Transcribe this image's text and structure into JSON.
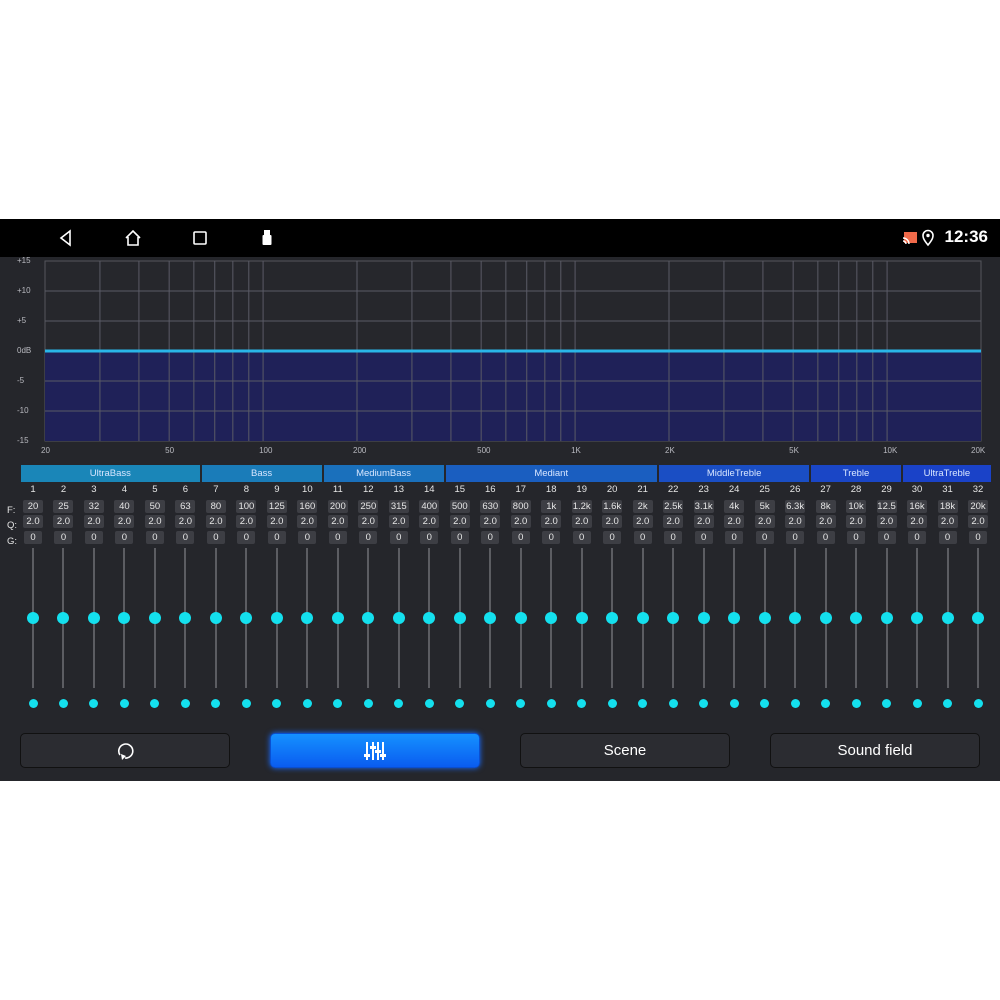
{
  "status": {
    "time": "12:36",
    "nav_icons": [
      "back-icon",
      "home-icon",
      "recents-icon",
      "usb-icon"
    ],
    "status_icons": [
      "cast-icon",
      "location-icon"
    ]
  },
  "chart_data": {
    "type": "area",
    "x_scale": "log",
    "xlim": [
      20,
      20000
    ],
    "ylim": [
      -15,
      15
    ],
    "grid": true,
    "y_ticks": [
      "+15",
      "+10",
      "+5",
      "0dB",
      "-5",
      "-10",
      "-15"
    ],
    "x_ticks": [
      {
        "v": 20,
        "label": "20"
      },
      {
        "v": 50,
        "label": "50"
      },
      {
        "v": 100,
        "label": "100"
      },
      {
        "v": 200,
        "label": "200"
      },
      {
        "v": 500,
        "label": "500"
      },
      {
        "v": 1000,
        "label": "1K"
      },
      {
        "v": 2000,
        "label": "2K"
      },
      {
        "v": 5000,
        "label": "5K"
      },
      {
        "v": 10000,
        "label": "10K"
      },
      {
        "v": 20000,
        "label": "20K"
      }
    ],
    "series": [
      {
        "x": [
          20,
          20000
        ],
        "y": [
          0,
          0
        ]
      }
    ],
    "line_color": "#29b6e8",
    "fill_color": "#1f2158"
  },
  "bands": [
    {
      "name": "UltraBass",
      "from": 1,
      "to": 6,
      "color": "#1a86b8"
    },
    {
      "name": "Bass",
      "from": 7,
      "to": 10,
      "color": "#1a7cb9"
    },
    {
      "name": "MediumBass",
      "from": 11,
      "to": 14,
      "color": "#1a70bc"
    },
    {
      "name": "Mediant",
      "from": 15,
      "to": 21,
      "color": "#1a5ec0"
    },
    {
      "name": "MiddleTreble",
      "from": 22,
      "to": 26,
      "color": "#1a4ec4"
    },
    {
      "name": "Treble",
      "from": 27,
      "to": 29,
      "color": "#1a46c6"
    },
    {
      "name": "UltraTreble",
      "from": 30,
      "to": 32,
      "color": "#1a42c8"
    }
  ],
  "row_labels": {
    "f": "F:",
    "q": "Q:",
    "g": "G:"
  },
  "channels": [
    {
      "n": "1",
      "f": "20",
      "q": "2.0",
      "g": "0"
    },
    {
      "n": "2",
      "f": "25",
      "q": "2.0",
      "g": "0"
    },
    {
      "n": "3",
      "f": "32",
      "q": "2.0",
      "g": "0"
    },
    {
      "n": "4",
      "f": "40",
      "q": "2.0",
      "g": "0"
    },
    {
      "n": "5",
      "f": "50",
      "q": "2.0",
      "g": "0"
    },
    {
      "n": "6",
      "f": "63",
      "q": "2.0",
      "g": "0"
    },
    {
      "n": "7",
      "f": "80",
      "q": "2.0",
      "g": "0"
    },
    {
      "n": "8",
      "f": "100",
      "q": "2.0",
      "g": "0"
    },
    {
      "n": "9",
      "f": "125",
      "q": "2.0",
      "g": "0"
    },
    {
      "n": "10",
      "f": "160",
      "q": "2.0",
      "g": "0"
    },
    {
      "n": "11",
      "f": "200",
      "q": "2.0",
      "g": "0"
    },
    {
      "n": "12",
      "f": "250",
      "q": "2.0",
      "g": "0"
    },
    {
      "n": "13",
      "f": "315",
      "q": "2.0",
      "g": "0"
    },
    {
      "n": "14",
      "f": "400",
      "q": "2.0",
      "g": "0"
    },
    {
      "n": "15",
      "f": "500",
      "q": "2.0",
      "g": "0"
    },
    {
      "n": "16",
      "f": "630",
      "q": "2.0",
      "g": "0"
    },
    {
      "n": "17",
      "f": "800",
      "q": "2.0",
      "g": "0"
    },
    {
      "n": "18",
      "f": "1k",
      "q": "2.0",
      "g": "0"
    },
    {
      "n": "19",
      "f": "1.2k",
      "q": "2.0",
      "g": "0"
    },
    {
      "n": "20",
      "f": "1.6k",
      "q": "2.0",
      "g": "0"
    },
    {
      "n": "21",
      "f": "2k",
      "q": "2.0",
      "g": "0"
    },
    {
      "n": "22",
      "f": "2.5k",
      "q": "2.0",
      "g": "0"
    },
    {
      "n": "23",
      "f": "3.1k",
      "q": "2.0",
      "g": "0"
    },
    {
      "n": "24",
      "f": "4k",
      "q": "2.0",
      "g": "0"
    },
    {
      "n": "25",
      "f": "5k",
      "q": "2.0",
      "g": "0"
    },
    {
      "n": "26",
      "f": "6.3k",
      "q": "2.0",
      "g": "0"
    },
    {
      "n": "27",
      "f": "8k",
      "q": "2.0",
      "g": "0"
    },
    {
      "n": "28",
      "f": "10k",
      "q": "2.0",
      "g": "0"
    },
    {
      "n": "29",
      "f": "12.5",
      "q": "2.0",
      "g": "0"
    },
    {
      "n": "30",
      "f": "16k",
      "q": "2.0",
      "g": "0"
    },
    {
      "n": "31",
      "f": "18k",
      "q": "2.0",
      "g": "0"
    },
    {
      "n": "32",
      "f": "20k",
      "q": "2.0",
      "g": "0"
    }
  ],
  "gain_range": [
    -15,
    15
  ],
  "buttons": [
    {
      "icon": "reset-icon",
      "label": ""
    },
    {
      "icon": "equalizer-icon",
      "label": "",
      "active": true
    },
    {
      "label": "Scene"
    },
    {
      "label": "Sound field"
    }
  ]
}
